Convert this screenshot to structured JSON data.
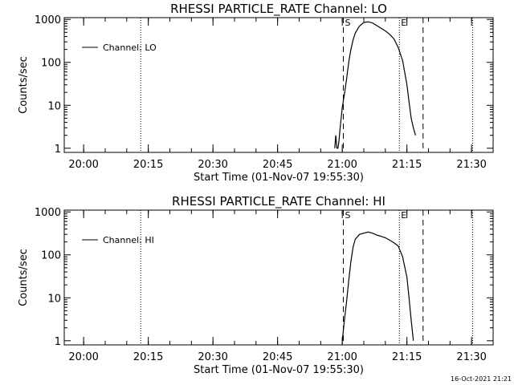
{
  "footer": {
    "timestamp": "16-Oct-2021 21:21"
  },
  "chart_data": [
    {
      "type": "line",
      "title": "RHESSI PARTICLE_RATE Channel: LO",
      "xlabel": "Start Time (01-Nov-07 19:55:30)",
      "ylabel": "Counts/sec",
      "y_scale": "log",
      "xlim": [
        "19:55:30",
        "21:35:00"
      ],
      "ylim": [
        0.8,
        1100
      ],
      "x_ticks": [
        "20:00",
        "20:15",
        "20:30",
        "20:45",
        "21:00",
        "21:15",
        "21:30"
      ],
      "y_ticks": [
        "1",
        "10",
        "100",
        "1000"
      ],
      "legend": {
        "position": "top-left",
        "entries": [
          "Channel: LO"
        ]
      },
      "vlines": [
        {
          "x": "20:13:15",
          "style": "dotted"
        },
        {
          "x": "21:00:15",
          "style": "dashed",
          "label": "S"
        },
        {
          "x": "21:13:15",
          "style": "dotted",
          "label": "E"
        },
        {
          "x": "21:18:45",
          "style": "dashed"
        },
        {
          "x": "21:30:15",
          "style": "dotted"
        }
      ],
      "series": [
        {
          "name": "Channel: LO",
          "x": [
            "20:58:15",
            "20:58:30",
            "20:58:45",
            "20:59:00",
            "20:59:15",
            "20:59:30",
            "20:59:45",
            "21:00:00",
            "21:00:30",
            "21:01:00",
            "21:01:30",
            "21:02:00",
            "21:02:30",
            "21:03:00",
            "21:04:00",
            "21:05:00",
            "21:06:00",
            "21:07:00",
            "21:08:00",
            "21:09:00",
            "21:10:00",
            "21:11:00",
            "21:12:00",
            "21:13:00",
            "21:14:00",
            "21:15:00",
            "21:15:30",
            "21:16:00",
            "21:16:30",
            "21:17:00"
          ],
          "y": [
            1,
            2,
            1,
            1,
            1.5,
            3,
            5,
            9,
            18,
            40,
            100,
            200,
            330,
            480,
            700,
            850,
            880,
            830,
            720,
            620,
            540,
            450,
            350,
            220,
            110,
            30,
            12,
            5,
            3,
            2
          ]
        }
      ]
    },
    {
      "type": "line",
      "title": "RHESSI PARTICLE_RATE Channel: HI",
      "xlabel": "Start Time (01-Nov-07 19:55:30)",
      "ylabel": "Counts/sec",
      "y_scale": "log",
      "xlim": [
        "19:55:30",
        "21:35:00"
      ],
      "ylim": [
        0.8,
        1100
      ],
      "x_ticks": [
        "20:00",
        "20:15",
        "20:30",
        "20:45",
        "21:00",
        "21:15",
        "21:30"
      ],
      "y_ticks": [
        "1",
        "10",
        "100",
        "1000"
      ],
      "legend": {
        "position": "top-left",
        "entries": [
          "Channel: HI"
        ]
      },
      "vlines": [
        {
          "x": "20:13:15",
          "style": "dotted"
        },
        {
          "x": "21:00:15",
          "style": "dashed",
          "label": "S"
        },
        {
          "x": "21:13:15",
          "style": "dotted",
          "label": "E"
        },
        {
          "x": "21:18:45",
          "style": "dashed"
        },
        {
          "x": "21:30:15",
          "style": "dotted"
        }
      ],
      "series": [
        {
          "name": "Channel: HI",
          "x": [
            "21:00:00",
            "21:00:30",
            "21:01:00",
            "21:01:30",
            "21:02:00",
            "21:02:30",
            "21:03:00",
            "21:04:00",
            "21:05:00",
            "21:06:00",
            "21:07:00",
            "21:08:00",
            "21:09:00",
            "21:10:00",
            "21:11:00",
            "21:12:00",
            "21:13:00",
            "21:14:00",
            "21:15:00",
            "21:15:30",
            "21:16:00",
            "21:16:30"
          ],
          "y": [
            1,
            3,
            8,
            25,
            70,
            150,
            230,
            300,
            320,
            340,
            320,
            290,
            270,
            250,
            220,
            190,
            160,
            90,
            30,
            10,
            3,
            1
          ]
        }
      ]
    }
  ]
}
